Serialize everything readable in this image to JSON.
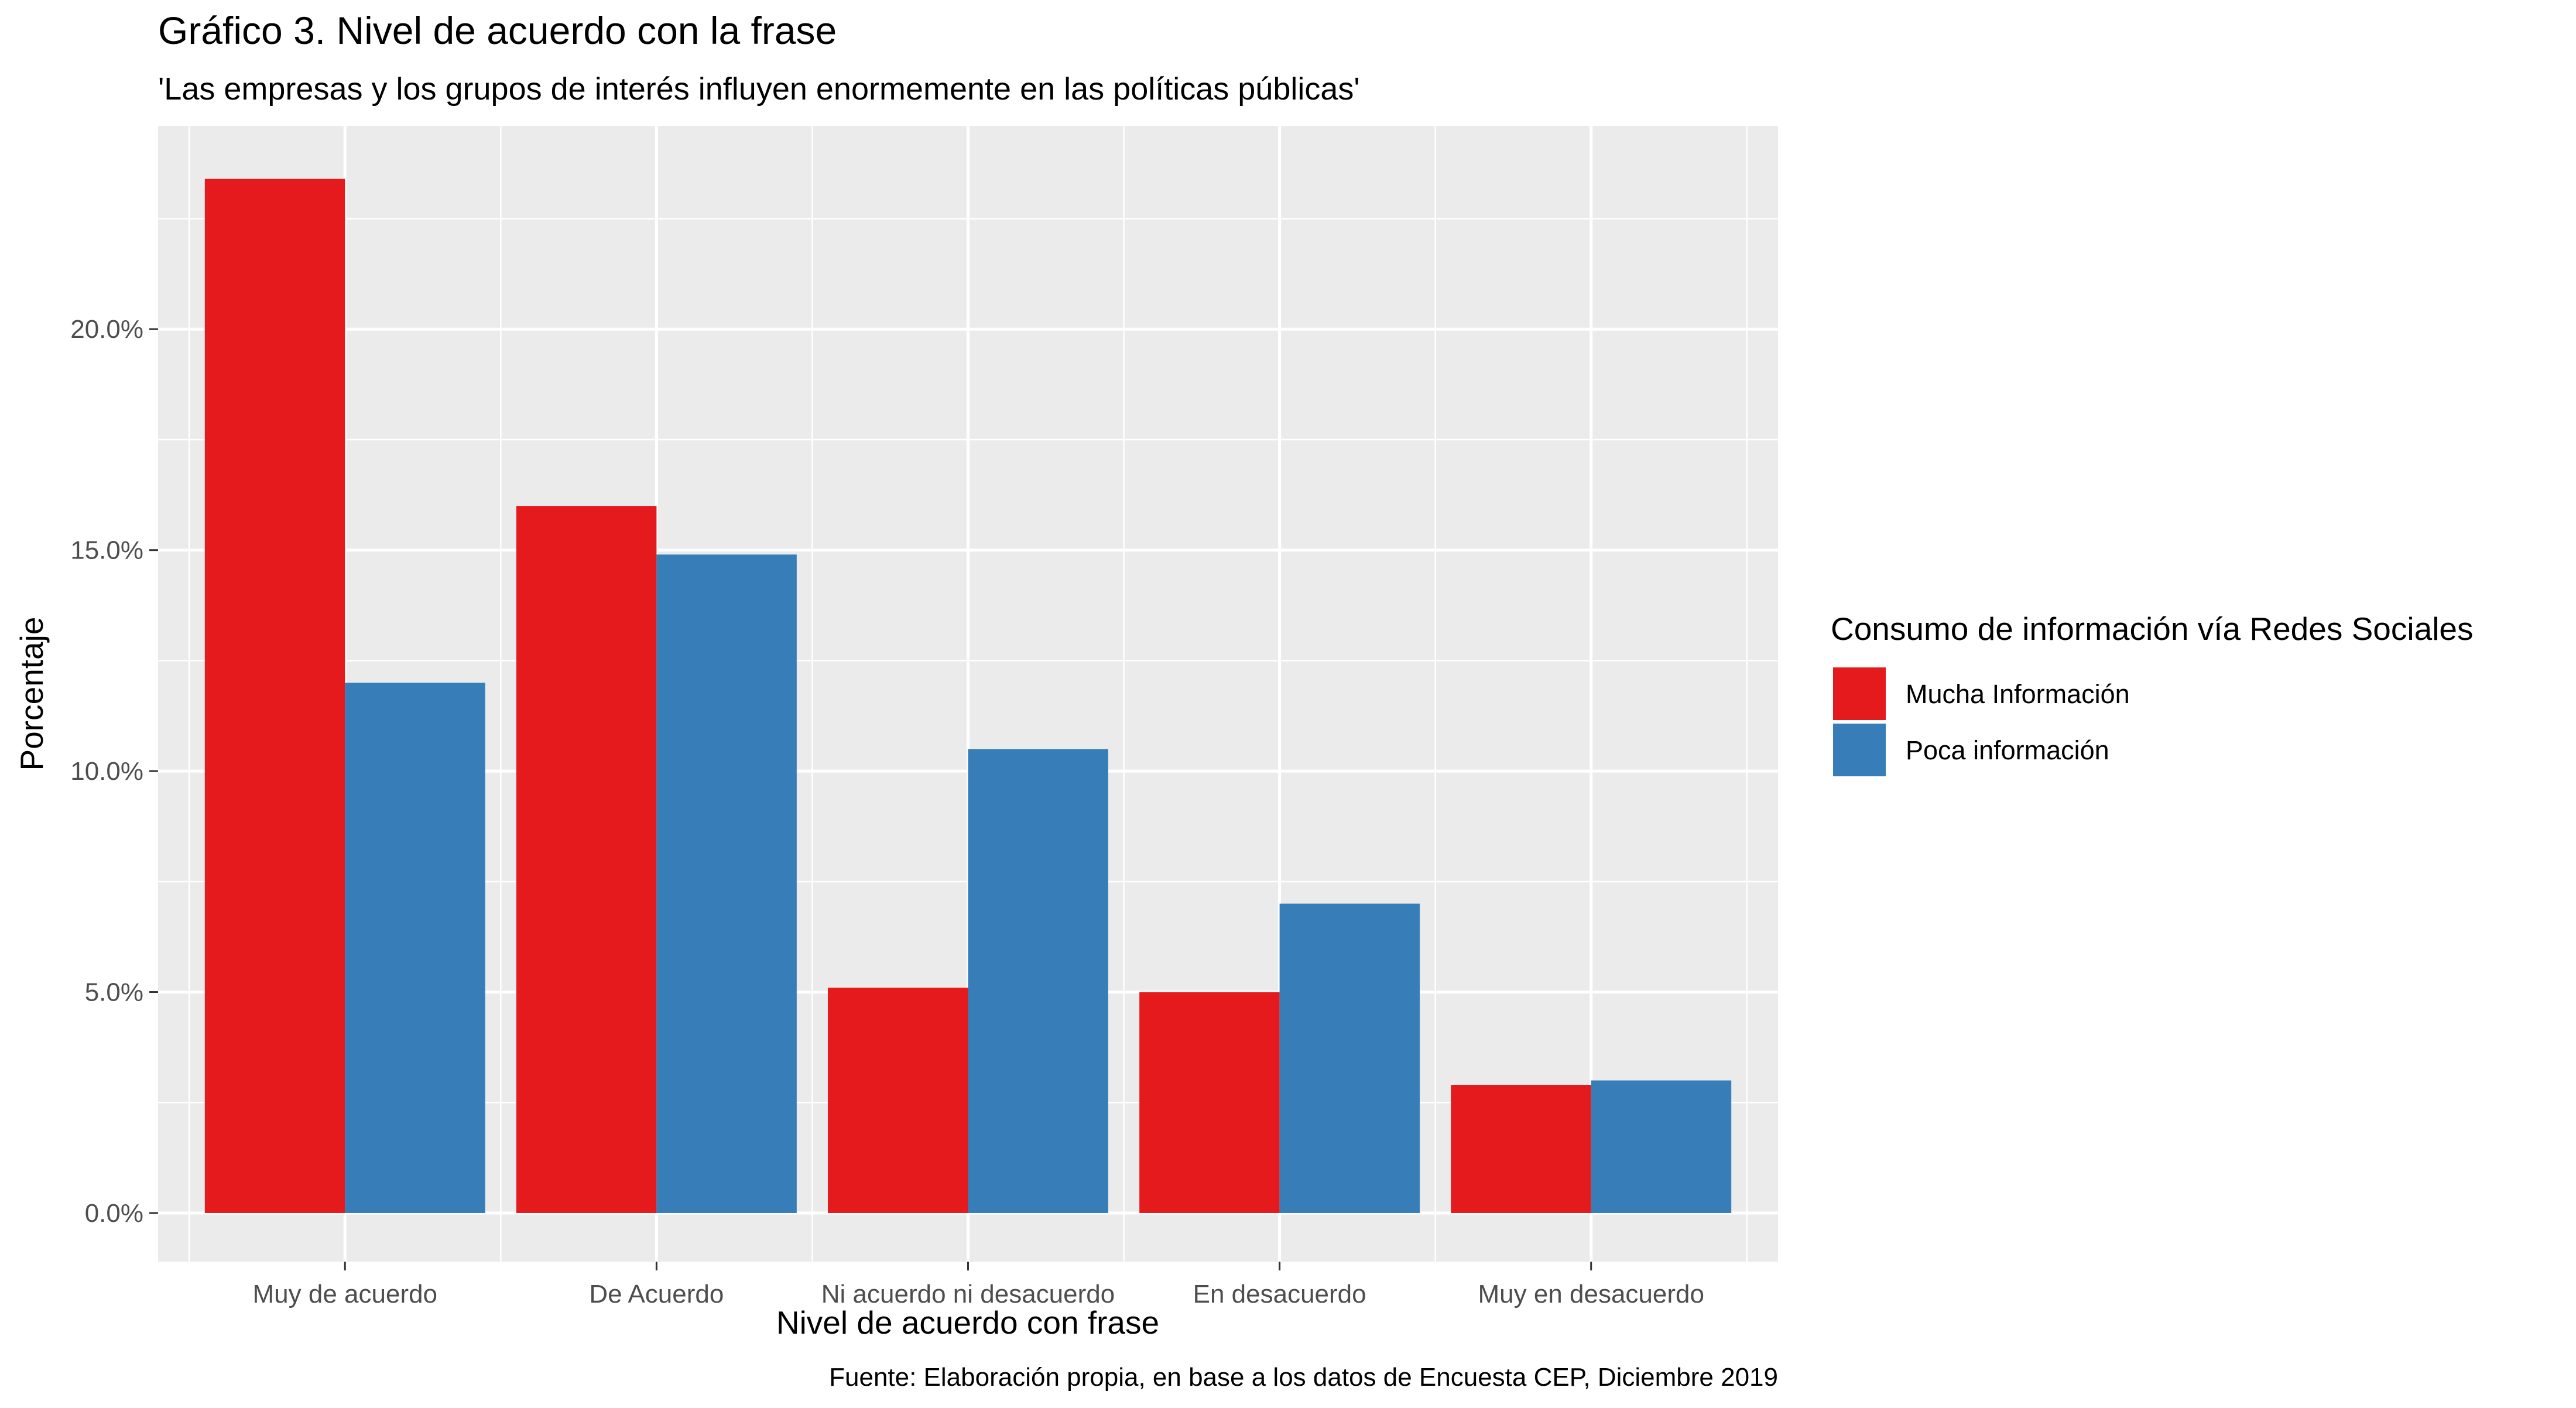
{
  "chart_data": {
    "type": "bar",
    "title": "Gráfico 3. Nivel de acuerdo con la frase",
    "subtitle": "'Las empresas y los grupos de interés influyen enormemente en las políticas públicas'",
    "xlabel": "Nivel de acuerdo con frase",
    "ylabel": "Porcentaje",
    "caption": "Fuente: Elaboración propia, en base a los datos de Encuesta CEP, Diciembre 2019",
    "categories": [
      "Muy de acuerdo",
      "De Acuerdo",
      "Ni acuerdo ni desacuerdo",
      "En desacuerdo",
      "Muy en desacuerdo"
    ],
    "series": [
      {
        "name": "Mucha Información",
        "color": "#E41A1C",
        "values": [
          23.4,
          16.0,
          5.1,
          5.0,
          2.9
        ]
      },
      {
        "name": "Poca información",
        "color": "#377EB8",
        "values": [
          12.0,
          14.9,
          10.5,
          7.0,
          3.0
        ]
      }
    ],
    "ylim": [
      -1.1,
      24.6
    ],
    "y_ticks": [
      0,
      5,
      10,
      15,
      20
    ],
    "y_tick_labels": [
      "0.0%",
      "5.0%",
      "10.0%",
      "15.0%",
      "20.0%"
    ],
    "grid": true,
    "legend": {
      "title": "Consumo de información vía Redes Sociales",
      "placement": "right"
    },
    "panel_color": "#EBEBEB",
    "grid_color": "#FFFFFF"
  }
}
